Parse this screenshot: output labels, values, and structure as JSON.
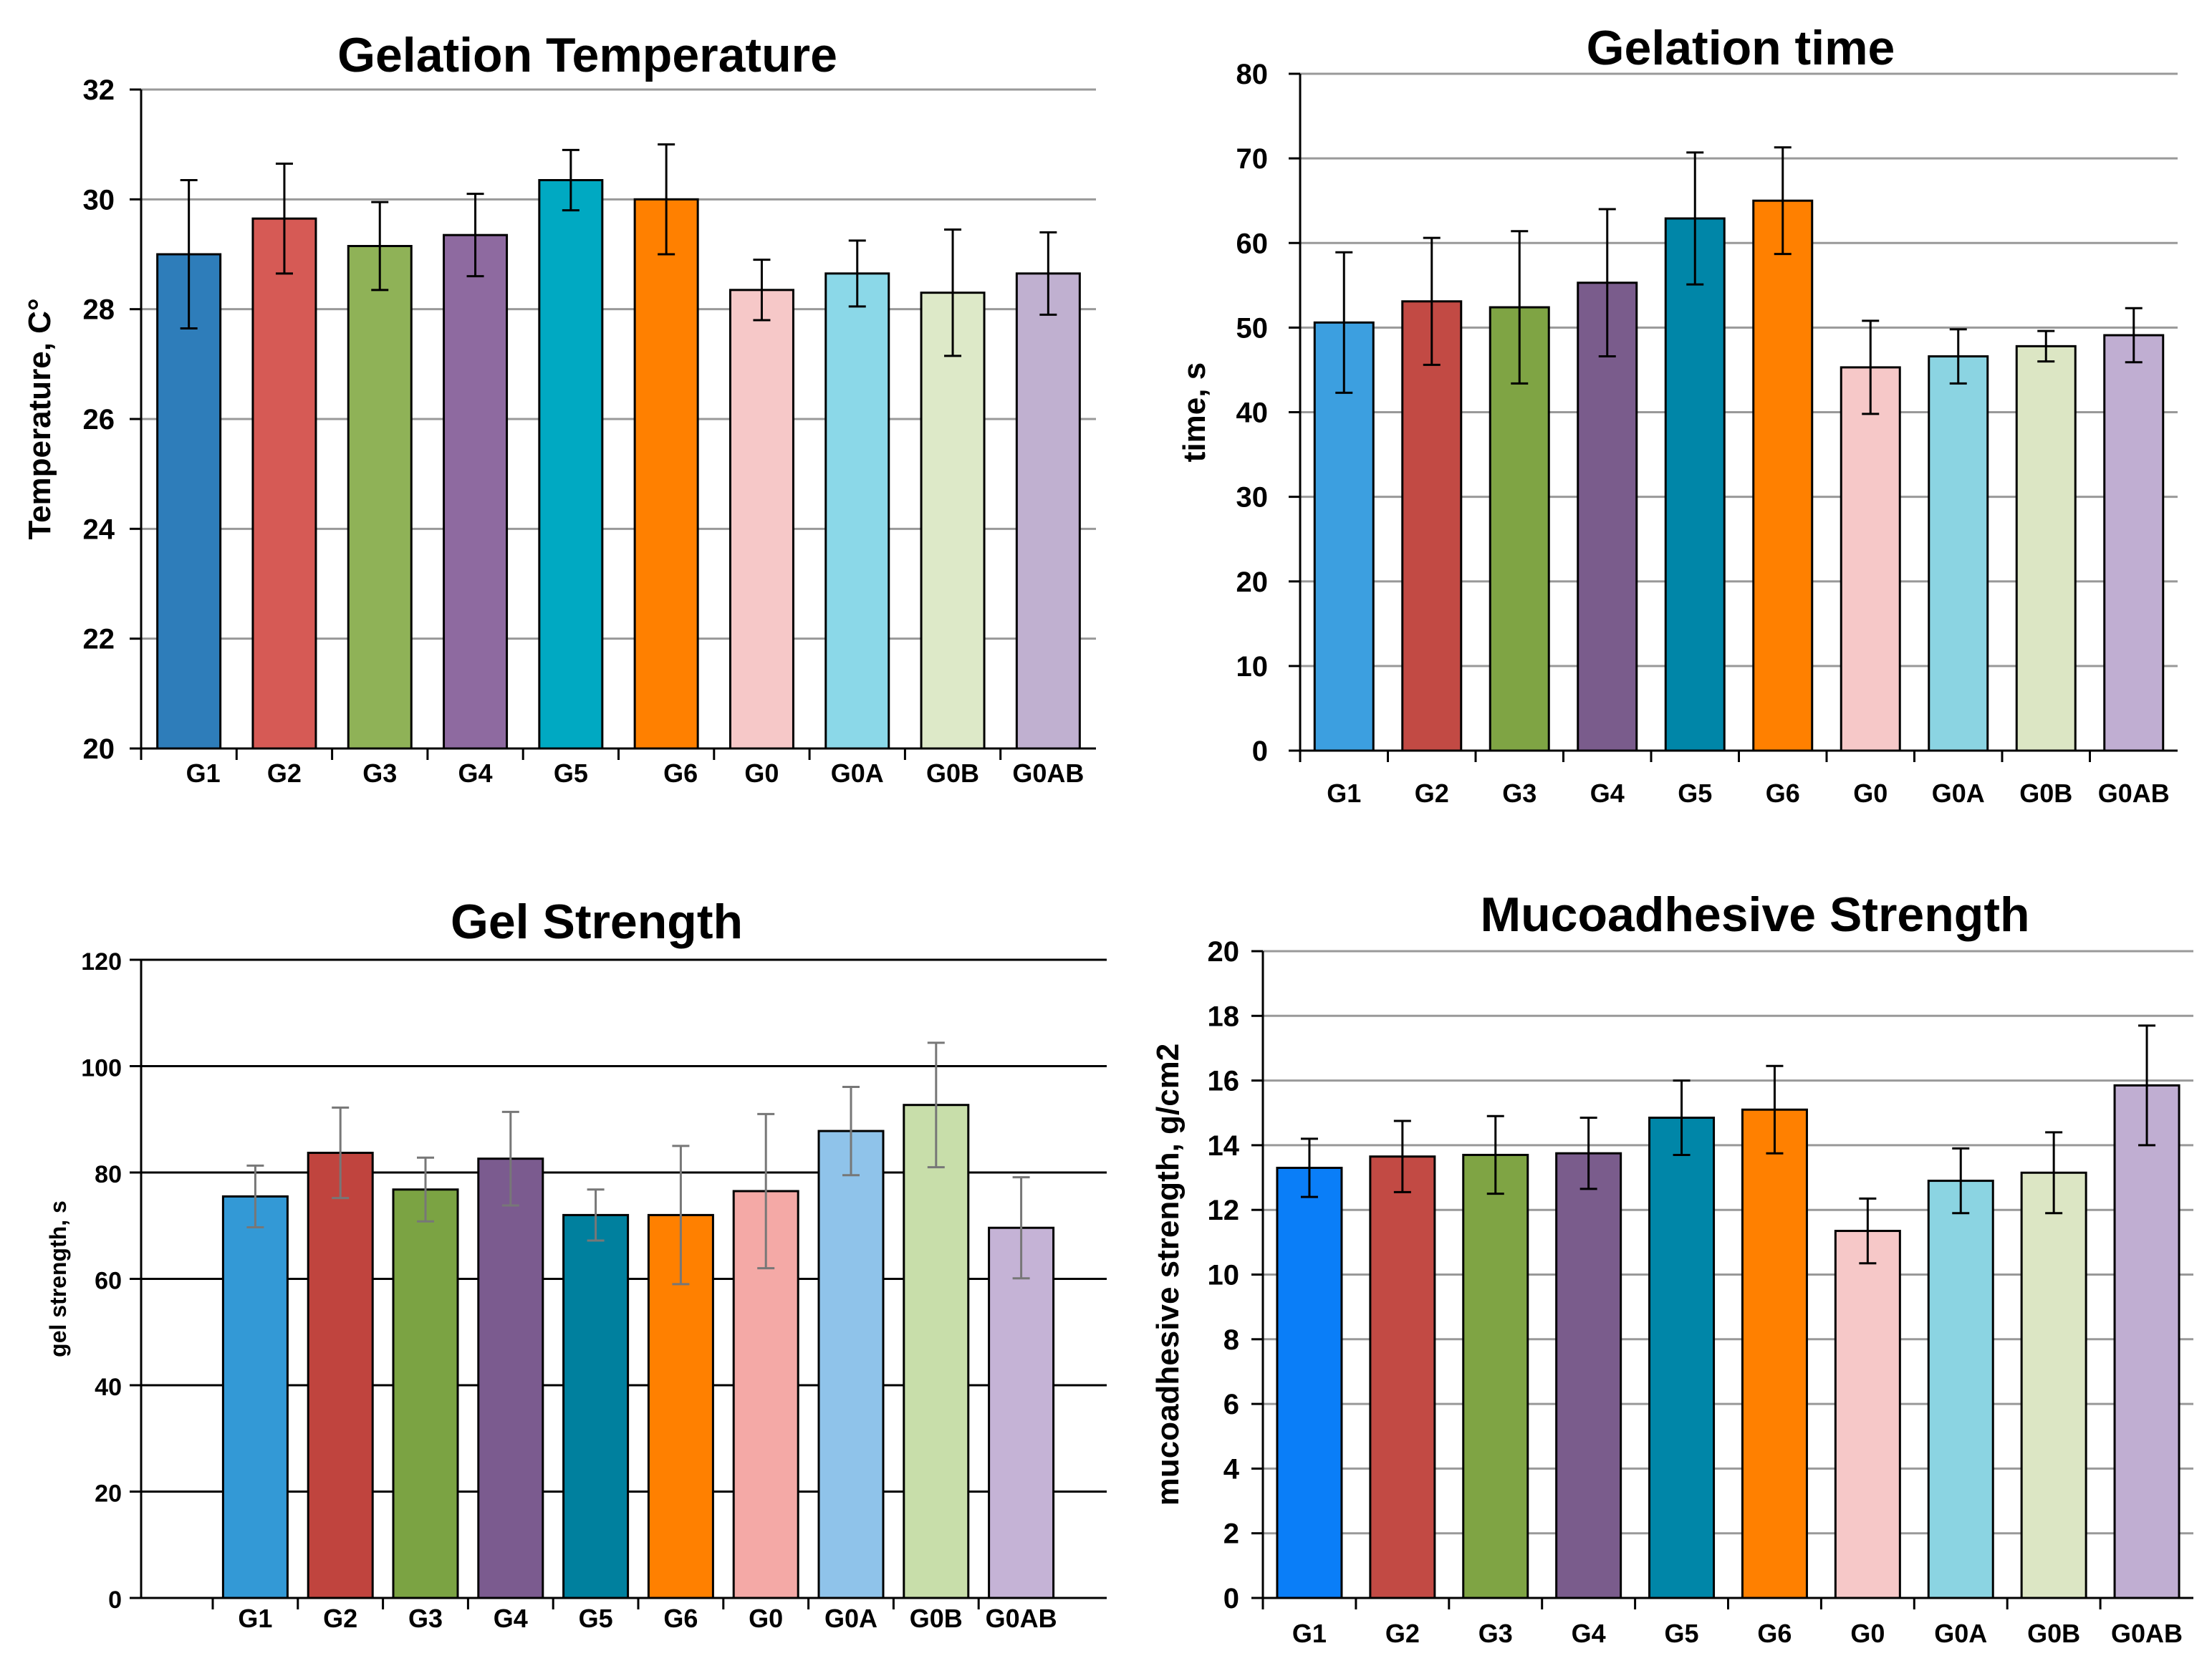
{
  "chart_data": [
    {
      "type": "bar",
      "title": "Gelation Temperature",
      "xlabel": "",
      "ylabel": "Temperature, C°",
      "ylim": [
        20,
        32
      ],
      "yticks": [
        20,
        22,
        24,
        26,
        28,
        30,
        32
      ],
      "grid": true,
      "categories": [
        "G1",
        "G2",
        "G3",
        "G4",
        "G5",
        "G6",
        "G0",
        "G0A",
        "G0B",
        "G0AB"
      ],
      "values": [
        29.0,
        29.65,
        29.15,
        29.35,
        30.35,
        30.0,
        28.35,
        28.65,
        28.3,
        28.65
      ],
      "errors": [
        1.35,
        1.0,
        0.8,
        0.75,
        0.55,
        1.0,
        0.55,
        0.6,
        1.15,
        0.75
      ],
      "colors": [
        "#2e7dba",
        "#d65a55",
        "#8fb257",
        "#8e6aa0",
        "#00a9c2",
        "#ff8000",
        "#f6c8c8",
        "#8bd8e8",
        "#dde9c8",
        "#c0b0d0"
      ]
    },
    {
      "type": "bar",
      "title": "Gelation time",
      "xlabel": "",
      "ylabel": "time, s",
      "ylim": [
        0,
        80
      ],
      "yticks": [
        0,
        10,
        20,
        30,
        40,
        50,
        60,
        70,
        80
      ],
      "grid": true,
      "categories": [
        "G1",
        "G2",
        "G3",
        "G4",
        "G5",
        "G6",
        "G0",
        "G0A",
        "G0B",
        "G0AB"
      ],
      "values": [
        50.6,
        53.1,
        52.4,
        55.3,
        62.9,
        65.0,
        45.3,
        46.6,
        47.8,
        49.1
      ],
      "errors": [
        8.3,
        7.5,
        9.0,
        8.7,
        7.8,
        6.3,
        5.5,
        3.2,
        1.8,
        3.2
      ],
      "colors": [
        "#3c9fe0",
        "#c24a44",
        "#7fa444",
        "#7a5c8c",
        "#0086a8",
        "#ff8000",
        "#f6c8c8",
        "#8bd4e2",
        "#dce6c4",
        "#c0aed2"
      ]
    },
    {
      "type": "bar",
      "title": "Gel Strength",
      "xlabel": "",
      "ylabel": "gel strength, s",
      "ylim": [
        0,
        120
      ],
      "yticks": [
        0,
        20,
        40,
        60,
        80,
        100,
        120
      ],
      "grid": true,
      "categories": [
        "G1",
        "G2",
        "G3",
        "G4",
        "G5",
        "G6",
        "G0",
        "G0A",
        "G0B",
        "G0AB"
      ],
      "values": [
        75.5,
        83.7,
        76.8,
        82.6,
        72.0,
        72.0,
        76.5,
        87.8,
        92.7,
        69.6
      ],
      "errors": [
        5.8,
        8.5,
        6.0,
        8.8,
        4.8,
        13.0,
        14.5,
        8.3,
        11.7,
        9.5
      ],
      "colors": [
        "#3399d6",
        "#c0443e",
        "#7ba343",
        "#7b5b8f",
        "#00809e",
        "#ff8000",
        "#f4a9a6",
        "#8fc3ea",
        "#c8deaa",
        "#c5b3d6"
      ]
    },
    {
      "type": "bar",
      "title": "Mucoadhesive Strength",
      "xlabel": "",
      "ylabel": "mucoadhesive strength, g/cm2",
      "ylim": [
        0,
        20
      ],
      "yticks": [
        0,
        2,
        4,
        6,
        8,
        10,
        12,
        14,
        16,
        18,
        20
      ],
      "grid": true,
      "categories": [
        "G1",
        "G2",
        "G3",
        "G4",
        "G5",
        "G6",
        "G0",
        "G0A",
        "G0B",
        "G0AB"
      ],
      "values": [
        13.3,
        13.65,
        13.7,
        13.75,
        14.85,
        15.1,
        11.35,
        12.9,
        13.15,
        15.85
      ],
      "errors": [
        0.9,
        1.1,
        1.2,
        1.1,
        1.15,
        1.35,
        1.0,
        1.0,
        1.25,
        1.85
      ],
      "colors": [
        "#0a7ef8",
        "#c24a44",
        "#7fa444",
        "#7a5c8c",
        "#0086a8",
        "#ff8000",
        "#f6c8c8",
        "#8bd4e2",
        "#dce6c4",
        "#c0aed2"
      ]
    }
  ]
}
